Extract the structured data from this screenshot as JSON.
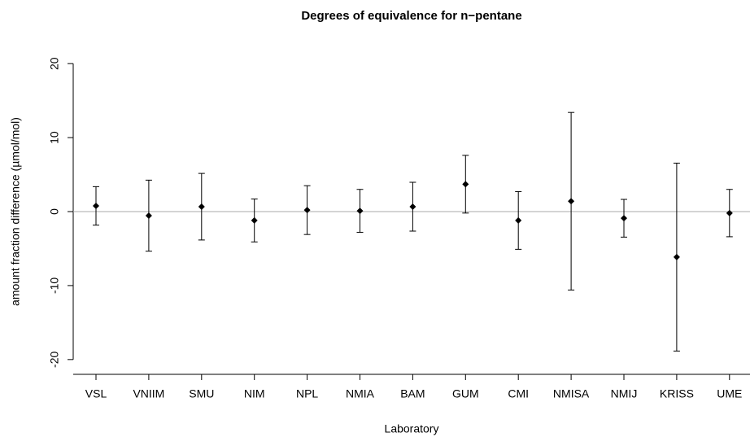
{
  "chart_data": {
    "type": "errorbar",
    "title": "Degrees of equivalence for n−pentane",
    "x_label": "Laboratory",
    "y_label": "amount fraction difference (µmol/mol)",
    "categories": [
      "VSL",
      "VNIIM",
      "SMU",
      "NIM",
      "NPL",
      "NMIA",
      "BAM",
      "GUM",
      "CMI",
      "NMISA",
      "NMIJ",
      "KRISS",
      "UME"
    ],
    "values": [
      0.77,
      -0.55,
      0.66,
      -1.2,
      0.2,
      0.1,
      0.66,
      3.7,
      -1.2,
      1.4,
      -0.9,
      -6.15,
      -0.2
    ],
    "errors": [
      2.6,
      4.8,
      4.5,
      2.9,
      3.3,
      2.9,
      3.3,
      3.9,
      3.9,
      12.0,
      2.55,
      12.7,
      3.2
    ],
    "color": "#000000",
    "reference_line": 0,
    "reference_color": "#aaaaaa",
    "ylim": [
      -22,
      22
    ],
    "yticks": [
      -20,
      -10,
      0,
      10,
      20
    ]
  }
}
